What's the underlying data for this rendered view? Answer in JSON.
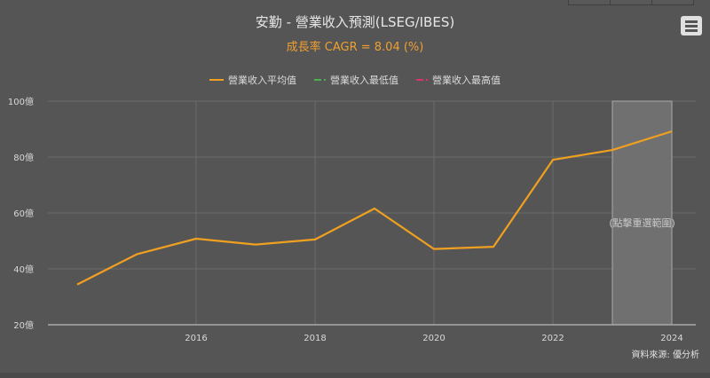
{
  "header": {
    "title": "安勤 - 營業收入預測(LSEG/IBES)",
    "subtitle": "成長率 CAGR = 8.04 (%)",
    "menu_icon": "hamburger-menu-icon"
  },
  "legend": [
    {
      "label": "營業收入平均值",
      "color": "#f0a020",
      "style": "solid"
    },
    {
      "label": "營業收入最低值",
      "color": "#4caf50",
      "style": "dash"
    },
    {
      "label": "營業收入最高值",
      "color": "#e0306a",
      "style": "dash"
    }
  ],
  "axes": {
    "y_ticks": [
      "100億",
      "80億",
      "60億",
      "40億",
      "20億"
    ],
    "x_ticks": [
      "2016",
      "2018",
      "2020",
      "2022",
      "2024"
    ]
  },
  "forecast_band": {
    "label": "(點擊重選範圍)",
    "from": 2023,
    "to": 2024
  },
  "source": "資料來源: 優分析",
  "colors": {
    "background": "#555555",
    "line": "#f0a020",
    "grid": "#6a6a6a",
    "band": "#707070"
  },
  "chart_data": {
    "type": "line",
    "title": "安勤 - 營業收入預測(LSEG/IBES)",
    "subtitle": "成長率 CAGR = 8.04 (%)",
    "xlabel": "",
    "ylabel": "億",
    "x": [
      2014,
      2015,
      2016,
      2017,
      2018,
      2019,
      2020,
      2021,
      2022,
      2023,
      2024
    ],
    "series": [
      {
        "name": "營業收入平均值",
        "values": [
          34.4,
          45.2,
          50.8,
          48.7,
          50.5,
          61.6,
          47.1,
          47.9,
          79.0,
          82.5,
          89.2
        ]
      },
      {
        "name": "營業收入最低值",
        "values": []
      },
      {
        "name": "營業收入最高值",
        "values": []
      }
    ],
    "ylim": [
      20,
      100
    ],
    "y_ticks": [
      20,
      40,
      60,
      80,
      100
    ],
    "x_ticks": [
      2016,
      2018,
      2020,
      2022,
      2024
    ],
    "grid": true,
    "legend_position": "top",
    "highlight_range": [
      2023,
      2024
    ],
    "annotation": "(點擊重選範圍)"
  }
}
